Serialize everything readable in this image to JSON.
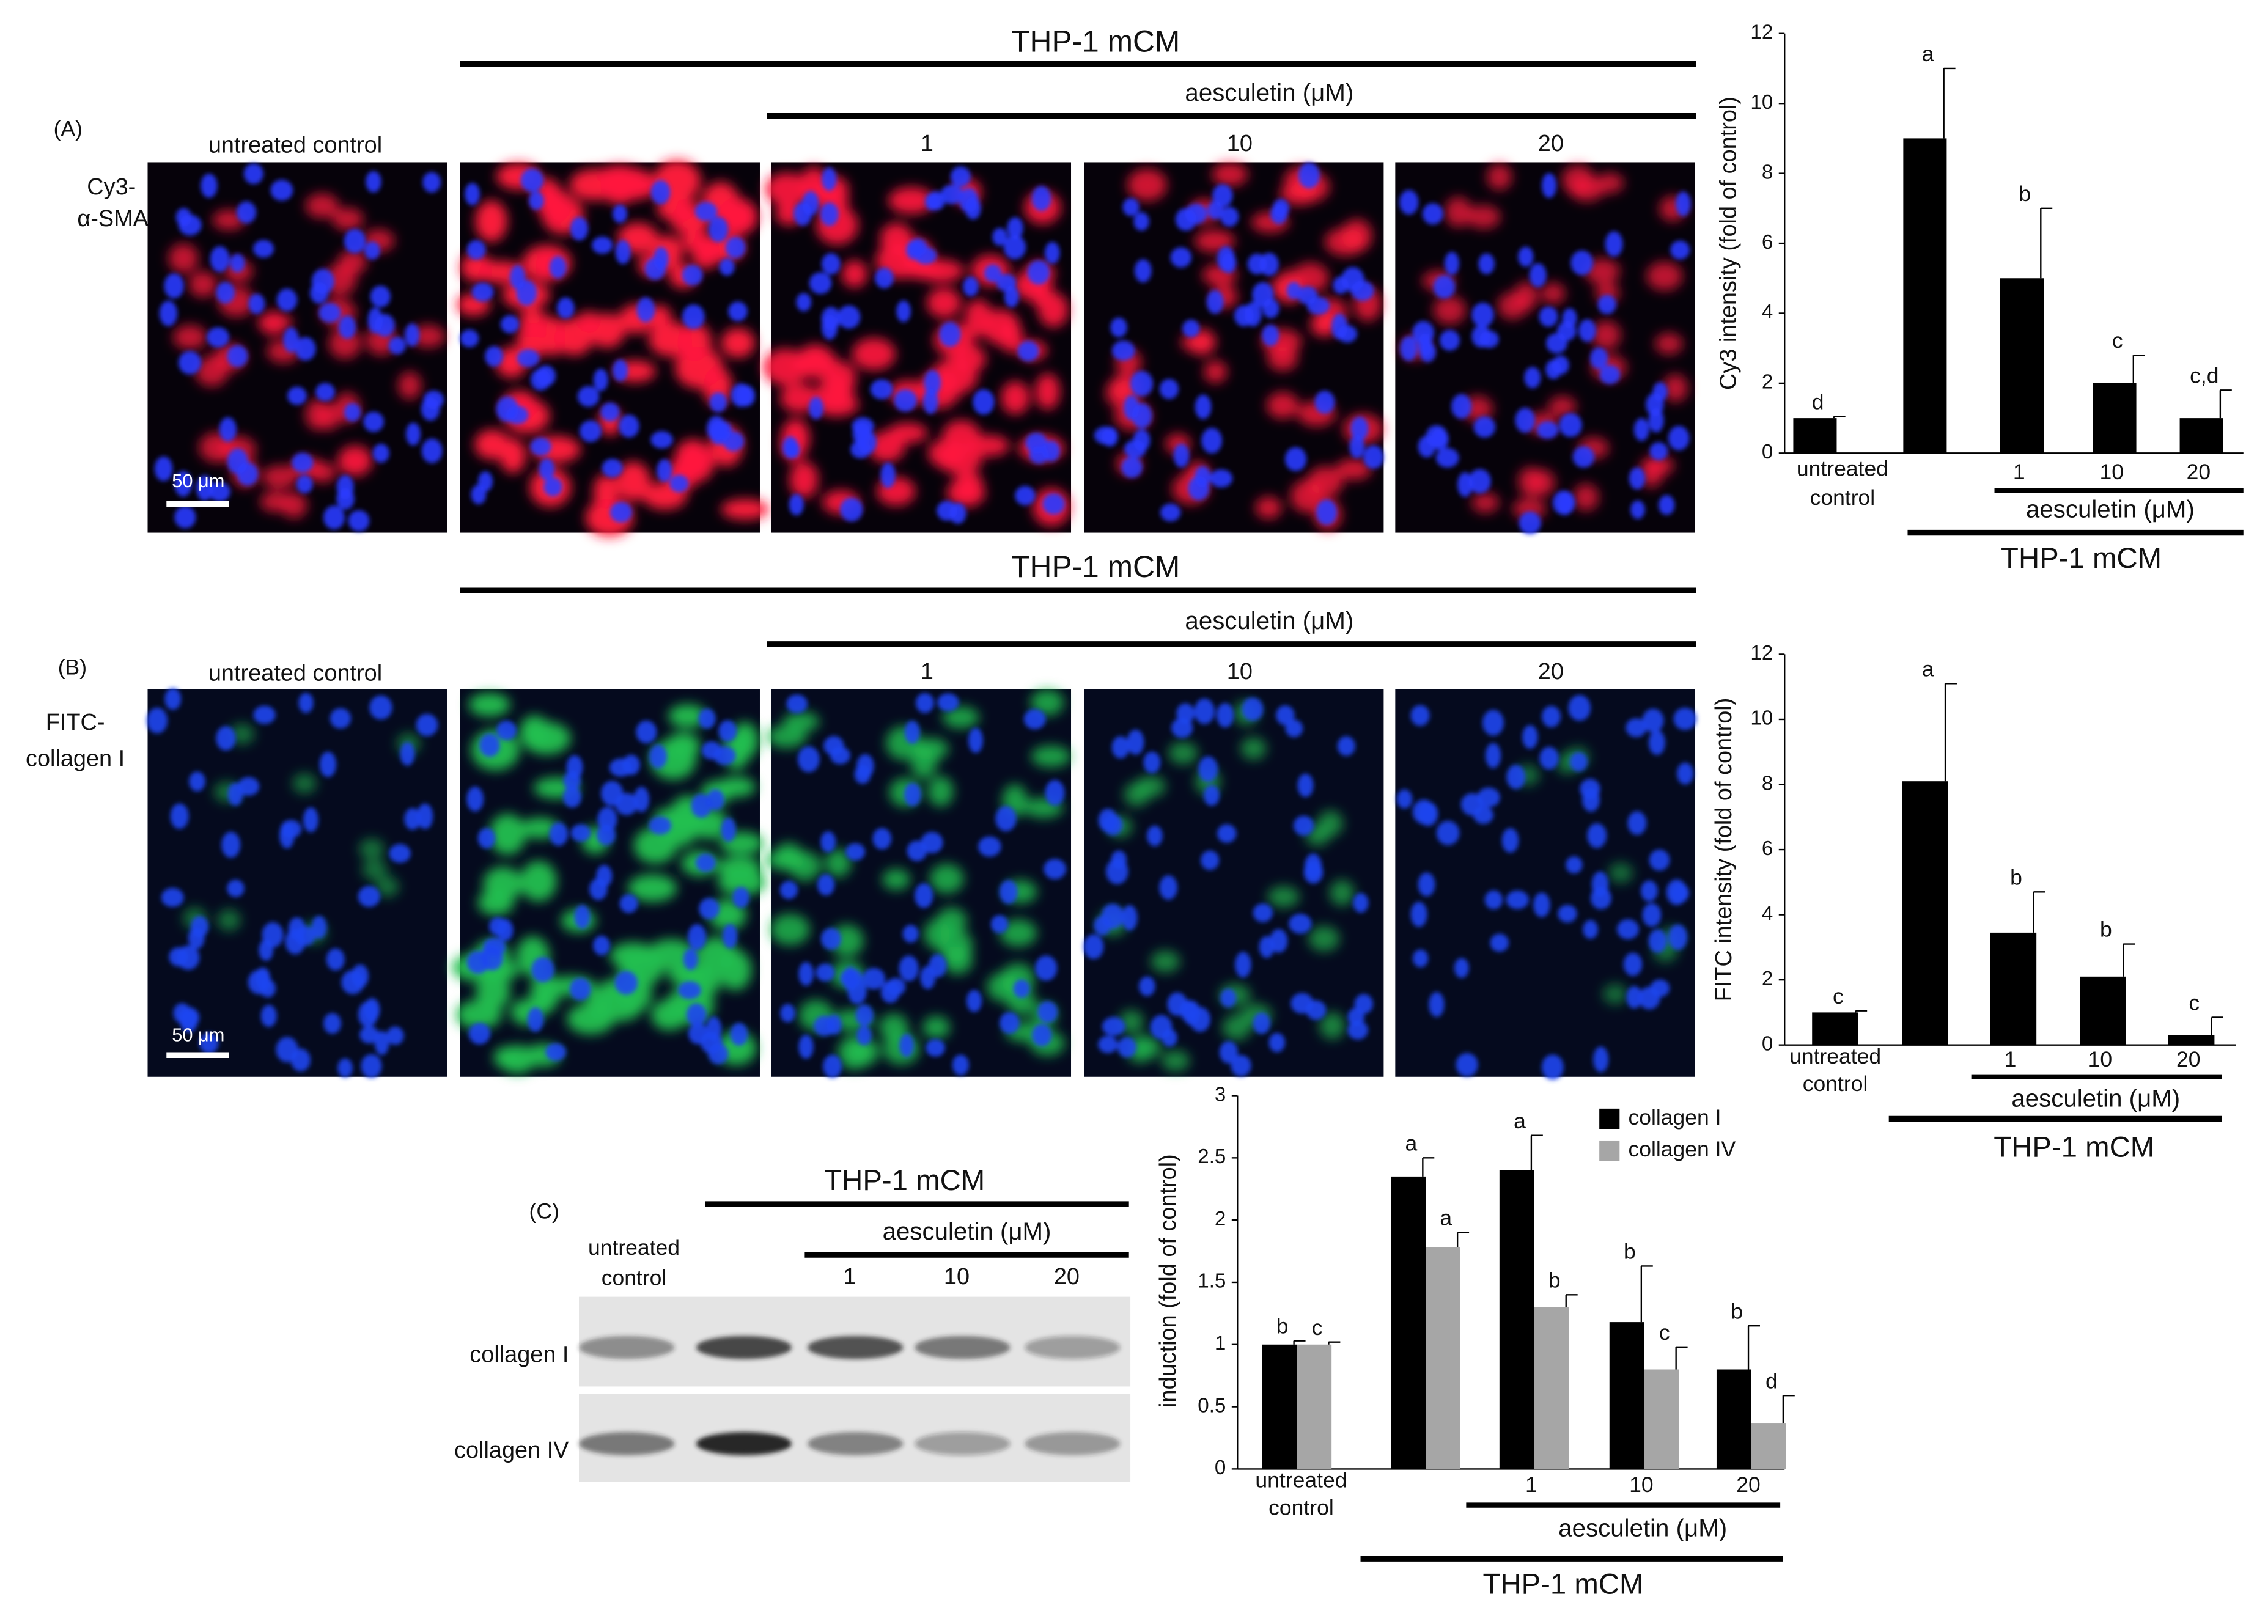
{
  "panels": [
    {
      "label": "(A)",
      "stain": [
        "Cy3-",
        "α-SMA"
      ],
      "control": "untreated control",
      "group": "THP-1 mCM",
      "treatment": "aesculetin (μM)",
      "doses": [
        "1",
        "10",
        "20"
      ],
      "scale_bar": "50 μm"
    },
    {
      "label": "(B)",
      "stain": [
        "FITC-",
        "collagen I"
      ],
      "control": "untreated control",
      "group": "THP-1 mCM",
      "treatment": "aesculetin (μM)",
      "doses": [
        "1",
        "10",
        "20"
      ],
      "scale_bar": "50 μm"
    }
  ],
  "blot": {
    "label": "(C)",
    "control": [
      "untreated",
      "control"
    ],
    "group": "THP-1 mCM",
    "treatment": "aesculetin (μM)",
    "doses": [
      "1",
      "10",
      "20"
    ],
    "rows": [
      "collagen I",
      "collagen IV"
    ]
  },
  "chart_data": [
    {
      "type": "bar",
      "y_label": "Cy3 intensity (fold of control)",
      "categories": [
        "untreated control",
        null,
        "1",
        "10",
        "20"
      ],
      "values": [
        1,
        9,
        5,
        2,
        1
      ],
      "errors": [
        0.05,
        2,
        2,
        0.8,
        0.8
      ],
      "significance": [
        "d",
        "a",
        "b",
        "c",
        "c,d"
      ],
      "color": "#000000",
      "treatment_label": "aesculetin (μM)",
      "group_label": "THP-1 mCM",
      "ylim": [
        0,
        12
      ],
      "yticks": [
        0,
        2,
        4,
        6,
        8,
        10,
        12
      ]
    },
    {
      "type": "bar",
      "y_label": "FITC intensity (fold of control)",
      "categories": [
        "untreated control",
        null,
        "1",
        "10",
        "20"
      ],
      "values": [
        1,
        8.1,
        3.45,
        2.1,
        0.3
      ],
      "errors": [
        0.05,
        3,
        1.25,
        1,
        0.55
      ],
      "significance": [
        "c",
        "a",
        "b",
        "b",
        "c"
      ],
      "color": "#000000",
      "treatment_label": "aesculetin (μM)",
      "group_label": "THP-1 mCM",
      "ylim": [
        0,
        12
      ],
      "yticks": [
        0,
        2,
        4,
        6,
        8,
        10,
        12
      ]
    },
    {
      "type": "bar",
      "y_label": "induction (fold of control)",
      "categories": [
        "untreated control",
        null,
        "1",
        "10",
        "20"
      ],
      "series": [
        {
          "name": "collagen I",
          "color": "#000000",
          "values": [
            1,
            2.35,
            2.4,
            1.18,
            0.8
          ],
          "errors": [
            0.03,
            0.15,
            0.28,
            0.45,
            0.35
          ],
          "significance": [
            "b",
            "a",
            "a",
            "b",
            "b"
          ]
        },
        {
          "name": "collagen IV",
          "color": "#a6a6a6",
          "values": [
            1,
            1.78,
            1.3,
            0.8,
            0.37
          ],
          "errors": [
            0.02,
            0.12,
            0.1,
            0.18,
            0.22
          ],
          "significance": [
            "c",
            "a",
            "b",
            "c",
            "d"
          ]
        }
      ],
      "treatment_label": "aesculetin (μM)",
      "group_label": "THP-1 mCM",
      "legend": "upper right",
      "ylim": [
        0,
        3
      ],
      "yticks": [
        0,
        0.5,
        1,
        1.5,
        2,
        2.5,
        3
      ]
    }
  ]
}
